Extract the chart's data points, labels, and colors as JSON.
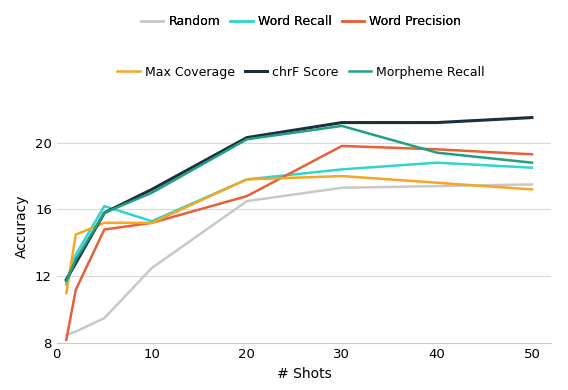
{
  "x": [
    1,
    2,
    5,
    10,
    20,
    30,
    40,
    50
  ],
  "series": {
    "Random": {
      "y": [
        8.5,
        8.7,
        9.5,
        12.5,
        16.5,
        17.3,
        17.4,
        17.5
      ],
      "color": "#c8c8c8",
      "lw": 1.8
    },
    "Word Recall": {
      "y": [
        11.5,
        13.3,
        16.2,
        15.3,
        17.8,
        18.4,
        18.8,
        18.5
      ],
      "color": "#30d4d4",
      "lw": 1.8
    },
    "Word Precision": {
      "y": [
        8.2,
        11.2,
        14.8,
        15.2,
        16.8,
        19.8,
        19.6,
        19.3
      ],
      "color": "#e8603a",
      "lw": 1.8
    },
    "Max Coverage": {
      "y": [
        11.0,
        14.5,
        15.2,
        15.2,
        17.8,
        18.0,
        17.6,
        17.2
      ],
      "color": "#f5a623",
      "lw": 1.8
    },
    "chrF Score": {
      "y": [
        11.8,
        12.8,
        15.8,
        17.2,
        20.3,
        21.2,
        21.2,
        21.5
      ],
      "color": "#1c2e40",
      "lw": 2.2
    },
    "Morpheme Recall": {
      "y": [
        11.7,
        13.0,
        15.8,
        17.0,
        20.2,
        21.0,
        19.4,
        18.8
      ],
      "color": "#20a080",
      "lw": 1.8
    }
  },
  "xlabel": "# Shots",
  "ylabel": "Accuracy",
  "ylim": [
    8,
    22
  ],
  "yticks": [
    8,
    12,
    16,
    20
  ],
  "xticks": [
    0,
    10,
    20,
    30,
    40,
    50
  ],
  "legend_row1": [
    "Random",
    "Word Recall",
    "Word Precision"
  ],
  "legend_row2": [
    "Max Coverage",
    "chrF Score",
    "Morpheme Recall"
  ],
  "background_color": "#ffffff",
  "grid_color": "#d8d8d8"
}
